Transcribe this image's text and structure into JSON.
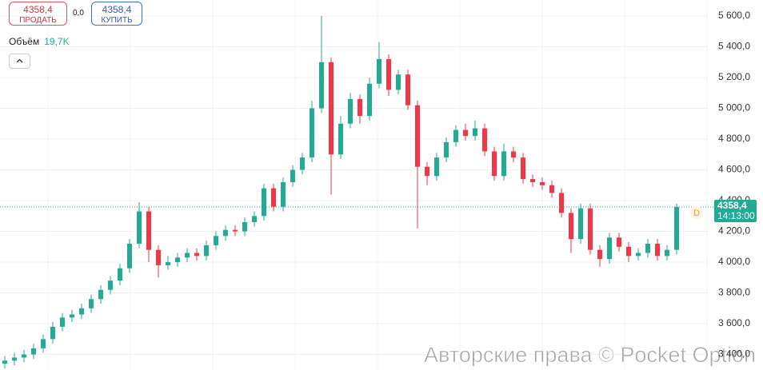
{
  "chart_data": {
    "type": "candlestick",
    "ylim": [
      3299,
      5704
    ],
    "yticks": [
      {
        "value": 5600,
        "label": "5 600,0"
      },
      {
        "value": 5400,
        "label": "5 400,0"
      },
      {
        "value": 5200,
        "label": "5 200,0"
      },
      {
        "value": 5000,
        "label": "5 000,0"
      },
      {
        "value": 4800,
        "label": "4 800,0"
      },
      {
        "value": 4600,
        "label": "4 600,0"
      },
      {
        "value": 4400,
        "label": "4 400,0"
      },
      {
        "value": 4200,
        "label": "4 200,0"
      },
      {
        "value": 4000,
        "label": "4 000,0"
      },
      {
        "value": 3800,
        "label": "3 800,0"
      },
      {
        "value": 3600,
        "label": "3 600,0"
      },
      {
        "value": 3400,
        "label": "3 400,0"
      }
    ],
    "grid": true,
    "up_color": "#22ab94",
    "down_color": "#f23645",
    "open": [
      3340,
      3360,
      3380,
      3400,
      3440,
      3500,
      3580,
      3640,
      3660,
      3700,
      3760,
      3820,
      3880,
      3960,
      4120,
      4330,
      4080,
      3980,
      4000,
      4030,
      4060,
      4040,
      4110,
      4170,
      4210,
      4200,
      4260,
      4300,
      4480,
      4360,
      4520,
      4600,
      4680,
      5000,
      5300,
      4700,
      4900,
      5060,
      4950,
      5160,
      5320,
      5120,
      5220,
      5020,
      4620,
      4560,
      4680,
      4780,
      4860,
      4820,
      4870,
      4720,
      4560,
      4720,
      4680,
      4540,
      4520,
      4500,
      4450,
      4320,
      4150,
      4350,
      4080,
      4020,
      4160,
      4100,
      4040,
      4060,
      4120,
      4040,
      4080
    ],
    "high": [
      3390,
      3410,
      3430,
      3470,
      3530,
      3610,
      3670,
      3690,
      3730,
      3790,
      3850,
      3910,
      3990,
      4150,
      4390,
      4360,
      4110,
      4040,
      4060,
      4090,
      4090,
      4140,
      4200,
      4240,
      4240,
      4290,
      4330,
      4510,
      4510,
      4550,
      4630,
      4710,
      5050,
      5600,
      5330,
      4950,
      5100,
      5090,
      5200,
      5430,
      5350,
      5250,
      5250,
      5050,
      4650,
      4710,
      4810,
      4890,
      4900,
      4920,
      4900,
      4750,
      4770,
      4750,
      4710,
      4570,
      4550,
      4530,
      4480,
      4350,
      4380,
      4380,
      4110,
      4190,
      4190,
      4130,
      4090,
      4150,
      4150,
      4110,
      4380
    ],
    "low": [
      3310,
      3330,
      3350,
      3370,
      3410,
      3470,
      3550,
      3610,
      3630,
      3670,
      3730,
      3790,
      3850,
      3930,
      4090,
      4000,
      3900,
      3950,
      3970,
      4000,
      4010,
      4010,
      4080,
      4140,
      4170,
      4170,
      4230,
      4270,
      4330,
      4330,
      4490,
      4570,
      4650,
      4970,
      4440,
      4670,
      4870,
      4900,
      4920,
      5130,
      5080,
      5090,
      4990,
      4220,
      4500,
      4530,
      4650,
      4750,
      4790,
      4790,
      4690,
      4530,
      4530,
      4650,
      4510,
      4490,
      4470,
      4420,
      4290,
      4060,
      4120,
      4050,
      3970,
      3990,
      4070,
      4000,
      4010,
      4030,
      4010,
      4010,
      4050
    ],
    "close": [
      3360,
      3380,
      3400,
      3440,
      3500,
      3580,
      3640,
      3660,
      3700,
      3760,
      3820,
      3880,
      3960,
      4120,
      4330,
      4080,
      3980,
      4000,
      4030,
      4060,
      4040,
      4110,
      4170,
      4210,
      4200,
      4260,
      4300,
      4480,
      4360,
      4520,
      4600,
      4680,
      5000,
      5300,
      4700,
      4900,
      5060,
      4950,
      5160,
      5320,
      5120,
      5220,
      5020,
      4620,
      4560,
      4680,
      4780,
      4860,
      4820,
      4870,
      4720,
      4560,
      4720,
      4680,
      4540,
      4520,
      4500,
      4450,
      4320,
      4150,
      4350,
      4080,
      4020,
      4160,
      4100,
      4040,
      4060,
      4120,
      4040,
      4080,
      4358.4
    ],
    "last_price": {
      "value": 4358.4,
      "label": "4358,4"
    },
    "last_time": "14:13:00",
    "timeframe": "D"
  },
  "trade_panel": {
    "sell_price": "4358,4",
    "sell_label": "ПРОДАТЬ",
    "spread": "0,0",
    "buy_price": "4358,4",
    "buy_label": "КУПИТЬ"
  },
  "volume": {
    "label": "Объём",
    "value": "19,7K"
  },
  "watermark": "Авторские права © Pocket Option"
}
